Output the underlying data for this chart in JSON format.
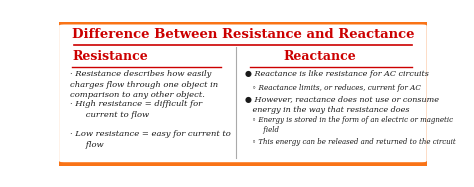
{
  "title": "Difference Between Resistance and Reactance",
  "title_color": "#cc0000",
  "background_color": "#ffffff",
  "border_color": "#f97316",
  "left_header": "Resistance",
  "right_header": "Reactance",
  "header_color": "#cc0000",
  "left_bullets": [
    "Resistance describes how easily\ncharges flow through one object in\ncomparison to any other object.",
    "High resistance = difficult for\n      current to flow",
    "Low resistance = easy for current to\n      flow"
  ],
  "right_bullets_main": [
    "Reactance is like resistance for AC circuits",
    "However, reactance does not use or consume\nenergy in the way that resistance does"
  ],
  "right_bullets_sub": [
    "Reactance limits, or reduces, current for AC",
    "Energy is stored in the form of an electric or magnetic\nfield",
    "This energy can be released and returned to the circuit"
  ],
  "text_color": "#1a1a1a",
  "figsize": [
    4.74,
    1.87
  ],
  "dpi": 100
}
